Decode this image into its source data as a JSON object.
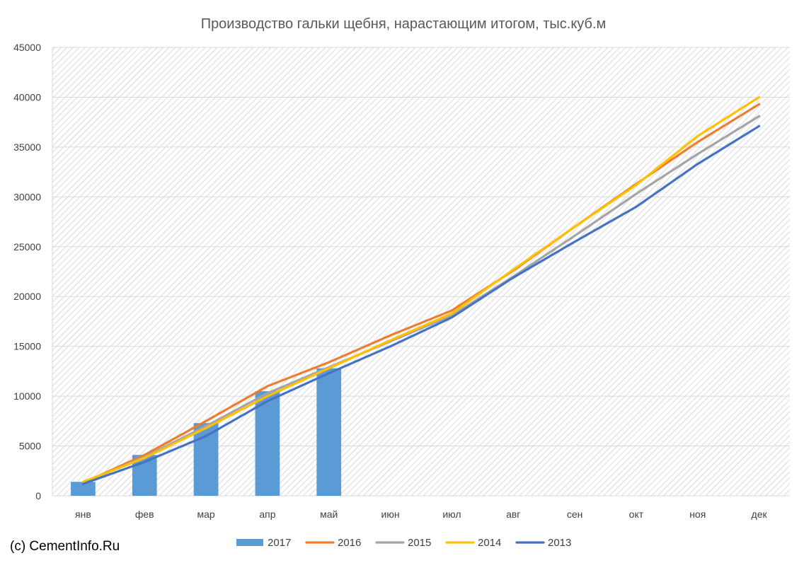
{
  "copyright": "(c) CementInfo.Ru",
  "chart_data": {
    "type": "bar",
    "title": "Производство гальки  щебня, нарастающим итогом, тыс.куб.м",
    "xlabel": "",
    "ylabel": "",
    "categories": [
      "янв",
      "фев",
      "мар",
      "апр",
      "май",
      "июн",
      "июл",
      "авг",
      "сен",
      "окт",
      "ноя",
      "дек"
    ],
    "ylim": [
      0,
      45000
    ],
    "yticks": [
      0,
      5000,
      10000,
      15000,
      20000,
      25000,
      30000,
      35000,
      40000,
      45000
    ],
    "grid": true,
    "legend": "bottom",
    "series": [
      {
        "name": "2017",
        "type": "bar",
        "color": "#5B9BD5",
        "values": [
          1400,
          4100,
          7300,
          10500,
          12800,
          null,
          null,
          null,
          null,
          null,
          null,
          null
        ]
      },
      {
        "name": "2016",
        "type": "line",
        "color": "#ED7D31",
        "values": [
          1300,
          4100,
          7500,
          11000,
          13400,
          16100,
          18600,
          22600,
          27000,
          31300,
          35500,
          39300
        ]
      },
      {
        "name": "2015",
        "type": "line",
        "color": "#A5A5A5",
        "values": [
          1300,
          3900,
          7000,
          10300,
          12900,
          15500,
          18100,
          22000,
          26100,
          30300,
          34300,
          38100
        ]
      },
      {
        "name": "2014",
        "type": "line",
        "color": "#FFC000",
        "values": [
          1400,
          3800,
          6800,
          10000,
          12800,
          15600,
          18300,
          22700,
          27000,
          31200,
          36100,
          40000
        ]
      },
      {
        "name": "2013",
        "type": "line",
        "color": "#4472C4",
        "values": [
          1200,
          3400,
          6000,
          9500,
          12300,
          15000,
          17900,
          21900,
          25500,
          29000,
          33300,
          37100
        ]
      }
    ]
  }
}
